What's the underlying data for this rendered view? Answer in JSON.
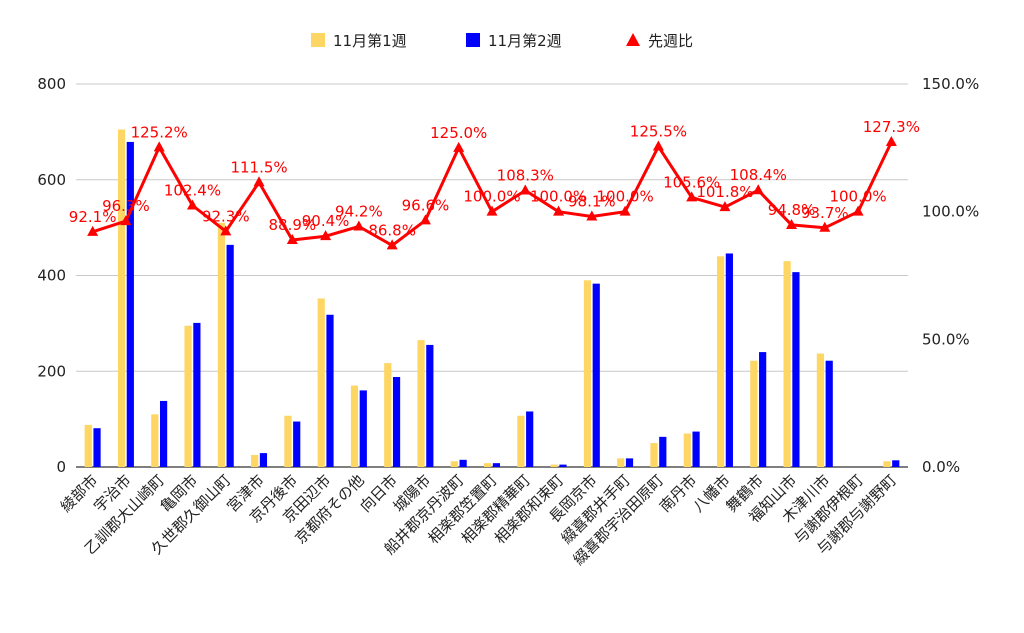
{
  "chart_data": {
    "type": "bar",
    "title": "",
    "xlabel": "",
    "ylabel": "",
    "ylim": [
      0,
      800
    ],
    "y2lim": [
      0,
      150
    ],
    "y_ticks": [
      "0",
      "200",
      "400",
      "600",
      "800"
    ],
    "y2_ticks": [
      "0.0%",
      "50.0%",
      "100.0%",
      "150.0%"
    ],
    "legend_position": "top",
    "grid": true,
    "categories": [
      "綾部市",
      "宇治市",
      "乙訓郡大山崎町",
      "亀岡市",
      "久世郡久御山町",
      "宮津市",
      "京丹後市",
      "京田辺市",
      "京都府その他",
      "向日市",
      "城陽市",
      "船井郡京丹波町",
      "相楽郡笠置町",
      "相楽郡精華町",
      "相楽郡和束町",
      "長岡京市",
      "綴喜郡井手町",
      "綴喜郡宇治田原町",
      "南丹市",
      "八幡市",
      "舞鶴市",
      "福知山市",
      "木津川市",
      "与謝郡伊根町",
      "与謝郡与謝野町"
    ],
    "series": [
      {
        "name": "11月第1週",
        "kind": "bar",
        "color": "#fdd663",
        "values": [
          88,
          705,
          110,
          295,
          510,
          25,
          107,
          352,
          170,
          217,
          265,
          12,
          8,
          107,
          5,
          390,
          18,
          50,
          70,
          440,
          222,
          430,
          237,
          0,
          12
        ]
      },
      {
        "name": "11月第2週",
        "kind": "bar",
        "color": "#0000ff",
        "values": [
          81,
          679,
          138,
          301,
          464,
          29,
          95,
          318,
          160,
          188,
          255,
          15,
          8,
          116,
          5,
          383,
          18,
          63,
          74,
          446,
          240,
          407,
          222,
          0,
          14
        ]
      },
      {
        "name": "先週比",
        "kind": "line",
        "axis": "right",
        "color": "#ff0000",
        "values": [
          92.1,
          96.3,
          125.2,
          102.4,
          92.3,
          111.5,
          88.9,
          90.4,
          94.2,
          86.8,
          96.6,
          125.0,
          100.0,
          108.3,
          100.0,
          98.1,
          100.0,
          125.5,
          105.6,
          101.8,
          108.4,
          94.8,
          93.7,
          100.0,
          127.3
        ],
        "labels": [
          "92.1%",
          "96.3%",
          "125.2%",
          "102.4%",
          "92.3%",
          "111.5%",
          "88.9%",
          "90.4%",
          "94.2%",
          "86.8%",
          "96.6%",
          "125.0%",
          "100.0%",
          "108.3%",
          "100.0%",
          "98.1%",
          "100.0%",
          "125.5%",
          "105.6%",
          "101.8%",
          "108.4%",
          "94.8%",
          "93.7%",
          "100.0%",
          "127.3%"
        ]
      }
    ]
  }
}
